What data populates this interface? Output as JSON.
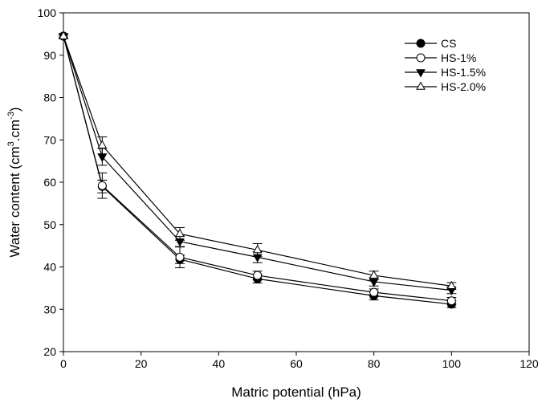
{
  "chart_data": {
    "type": "line",
    "xlabel": "Matric potential (hPa)",
    "ylabel_main": "Water content (cm",
    "ylabel_sup1": "3",
    "ylabel_mid": ".cm",
    "ylabel_sup2": "-3",
    "ylabel_end": ")",
    "xlim": [
      0,
      120
    ],
    "ylim": [
      20,
      100
    ],
    "xticks": [
      "0",
      "20",
      "40",
      "60",
      "80",
      "100",
      "120"
    ],
    "yticks": [
      "20",
      "30",
      "40",
      "50",
      "60",
      "70",
      "80",
      "90",
      "100"
    ],
    "grid": false,
    "legend_position": "top-right",
    "x": [
      0,
      10,
      30,
      50,
      80,
      100
    ],
    "series": [
      {
        "name": "CS",
        "marker": "filled-circle",
        "values": [
          94.5,
          59.0,
          41.8,
          37.2,
          33.2,
          31.2
        ],
        "errors": [
          0.5,
          1.5,
          1.0,
          1.0,
          1.0,
          0.8
        ]
      },
      {
        "name": "HS-1%",
        "marker": "open-circle",
        "values": [
          94.5,
          59.2,
          42.3,
          38.0,
          34.0,
          32.0
        ],
        "errors": [
          0.5,
          3.0,
          2.5,
          1.0,
          0.8,
          0.8
        ]
      },
      {
        "name": "HS-1.5%",
        "marker": "filled-triangle-down",
        "values": [
          94.5,
          66.0,
          46.0,
          42.3,
          36.5,
          34.5
        ],
        "errors": [
          0.5,
          2.0,
          1.3,
          1.3,
          1.0,
          0.8
        ]
      },
      {
        "name": "HS-2.0%",
        "marker": "open-triangle-up",
        "values": [
          94.5,
          68.7,
          47.8,
          44.0,
          38.0,
          35.5
        ],
        "errors": [
          0.5,
          2.0,
          1.5,
          1.5,
          1.0,
          0.8
        ]
      }
    ]
  }
}
